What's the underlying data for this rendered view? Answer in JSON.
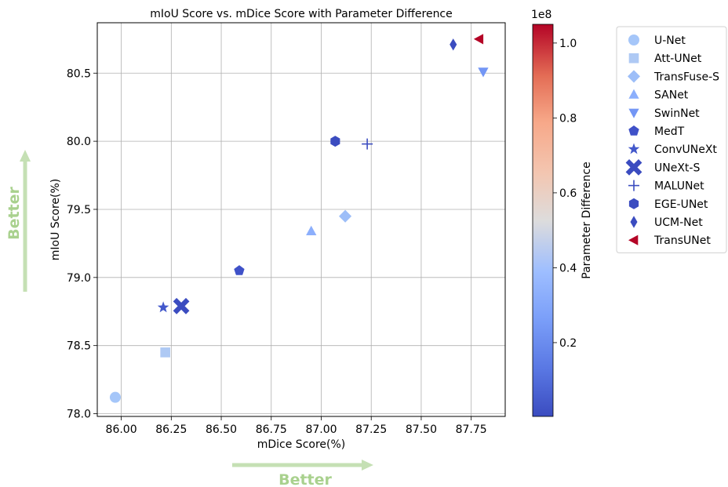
{
  "chart_data": {
    "type": "scatter",
    "title": "mIoU Score vs. mDice Score with Parameter Difference",
    "xlabel": "mDice Score(%)",
    "ylabel": "mIoU Score(%)",
    "xlim": [
      85.88,
      87.92
    ],
    "ylim": [
      77.98,
      80.87
    ],
    "xticks": [
      "86.00",
      "86.25",
      "86.50",
      "86.75",
      "87.00",
      "87.25",
      "87.50",
      "87.75"
    ],
    "yticks": [
      "78.0",
      "78.5",
      "79.0",
      "79.5",
      "80.0",
      "80.5"
    ],
    "grid": true,
    "legend_position": "outside-right",
    "colorbar": {
      "label": "Parameter Difference",
      "exponent_label": "1e8",
      "ticks": [
        "0.2",
        "0.4",
        "0.6",
        "0.8",
        "1.0"
      ],
      "colormap": "coolwarm"
    },
    "points": [
      {
        "name": "U-Net",
        "x": 85.97,
        "y": 78.12,
        "marker": "circle",
        "color": "#a5c6f9"
      },
      {
        "name": "Att-UNet",
        "x": 86.22,
        "y": 78.45,
        "marker": "square",
        "color": "#aec9f4"
      },
      {
        "name": "TransFuse-S",
        "x": 87.12,
        "y": 79.45,
        "marker": "diamond",
        "color": "#9dbef8"
      },
      {
        "name": "SANet",
        "x": 86.95,
        "y": 79.34,
        "marker": "triangle-up",
        "color": "#8caffc"
      },
      {
        "name": "SwinNet",
        "x": 87.81,
        "y": 80.51,
        "marker": "triangle-down",
        "color": "#7396f5"
      },
      {
        "name": "MedT",
        "x": 86.59,
        "y": 79.05,
        "marker": "pentagon",
        "color": "#3f51c8"
      },
      {
        "name": "ConvUNeXt",
        "x": 86.21,
        "y": 78.78,
        "marker": "star",
        "color": "#4358cb"
      },
      {
        "name": "UNeXt-S",
        "x": 86.3,
        "y": 78.79,
        "marker": "x",
        "color": "#3b4cc0"
      },
      {
        "name": "MALUNet",
        "x": 87.23,
        "y": 79.98,
        "marker": "plus",
        "color": "#3b4cc0"
      },
      {
        "name": "EGE-UNet",
        "x": 87.07,
        "y": 80.0,
        "marker": "hexagon",
        "color": "#3b4cc0"
      },
      {
        "name": "UCM-Net",
        "x": 87.66,
        "y": 80.71,
        "marker": "thin-diamond",
        "color": "#3b4cc0"
      },
      {
        "name": "TransUNet",
        "x": 87.79,
        "y": 80.75,
        "marker": "triangle-left",
        "color": "#b40426"
      }
    ]
  },
  "annotations": {
    "better_x": "Better",
    "better_y": "Better"
  }
}
